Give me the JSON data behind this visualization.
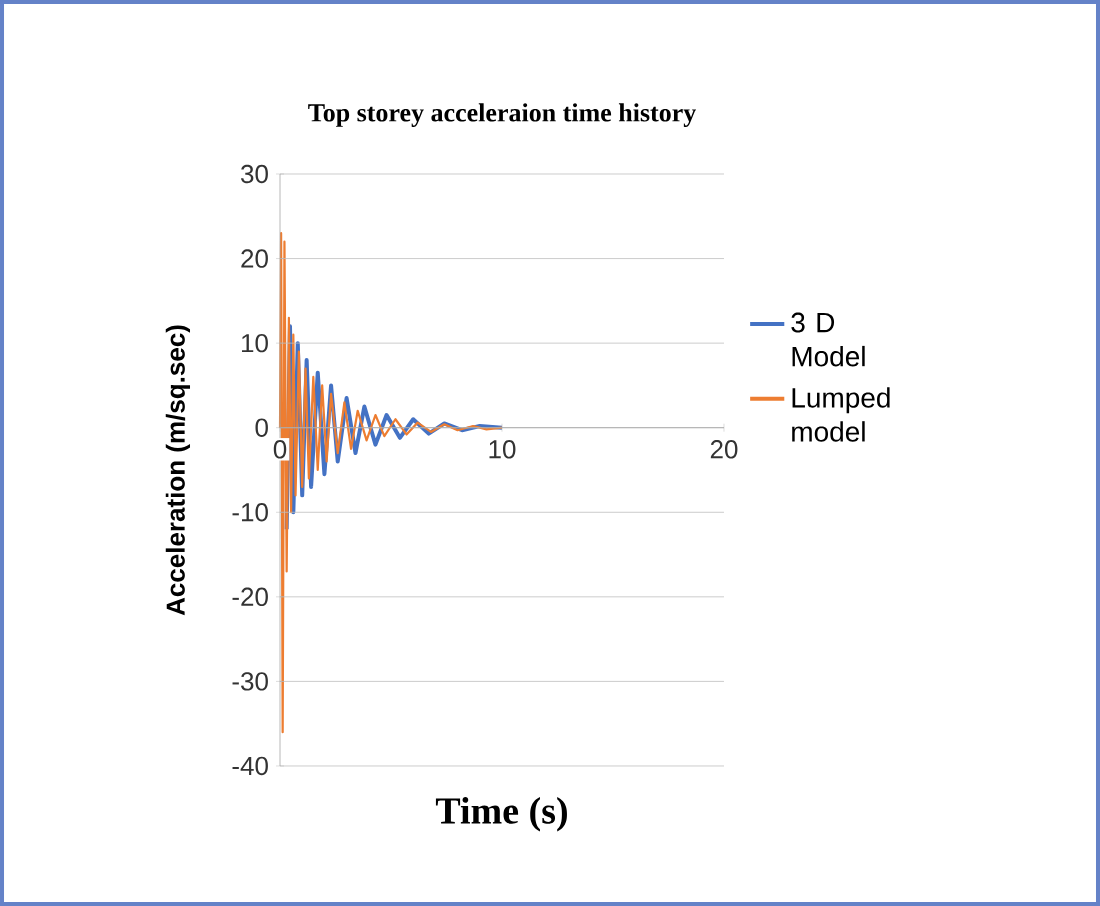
{
  "chart_data": {
    "type": "line",
    "title": "Top storey acceleraion time history",
    "xlabel": "Time (s)",
    "ylabel": "Acceleration (m/sq.sec)",
    "xlim": [
      0,
      20
    ],
    "ylim": [
      -40,
      30
    ],
    "xticks": [
      0,
      10,
      20
    ],
    "yticks": [
      -40,
      -30,
      -20,
      -10,
      0,
      10,
      20,
      30
    ],
    "grid": "y",
    "legend": "right",
    "series": [
      {
        "name": "3 D Model",
        "color": "#4472c4",
        "x": [
          0.3,
          0.45,
          0.6,
          0.8,
          1.0,
          1.2,
          1.4,
          1.7,
          2,
          2.3,
          2.6,
          3,
          3.4,
          3.8,
          4.3,
          4.8,
          5.4,
          6,
          6.7,
          7.4,
          8.2,
          9,
          10
        ],
        "values": [
          -12,
          12,
          -10,
          10,
          -8,
          8,
          -7,
          6.5,
          -5.5,
          5,
          -4,
          3.5,
          -3,
          2.5,
          -2,
          1.5,
          -1.2,
          1,
          -0.7,
          0.5,
          -0.3,
          0.2,
          0
        ]
      },
      {
        "name": "Lumped model",
        "color": "#ed7d31",
        "x": [
          0,
          0.05,
          0.12,
          0.2,
          0.3,
          0.4,
          0.5,
          0.6,
          0.7,
          0.85,
          1.0,
          1.15,
          1.3,
          1.5,
          1.7,
          1.9,
          2.1,
          2.3,
          2.6,
          2.9,
          3.2,
          3.5,
          3.9,
          4.3,
          4.7,
          5.2,
          5.7,
          6.2,
          6.8,
          7.4,
          8,
          8.7,
          9.3,
          10
        ],
        "values": [
          0,
          23,
          -36,
          22,
          -17,
          13,
          -10,
          11,
          -8,
          9,
          -7,
          7,
          -6,
          6,
          -5,
          5,
          -4,
          4,
          -3,
          3,
          -2.5,
          2,
          -1.5,
          1.5,
          -1,
          1,
          -0.8,
          0.6,
          -0.5,
          0.4,
          -0.3,
          0.2,
          -0.2,
          0
        ]
      }
    ]
  }
}
